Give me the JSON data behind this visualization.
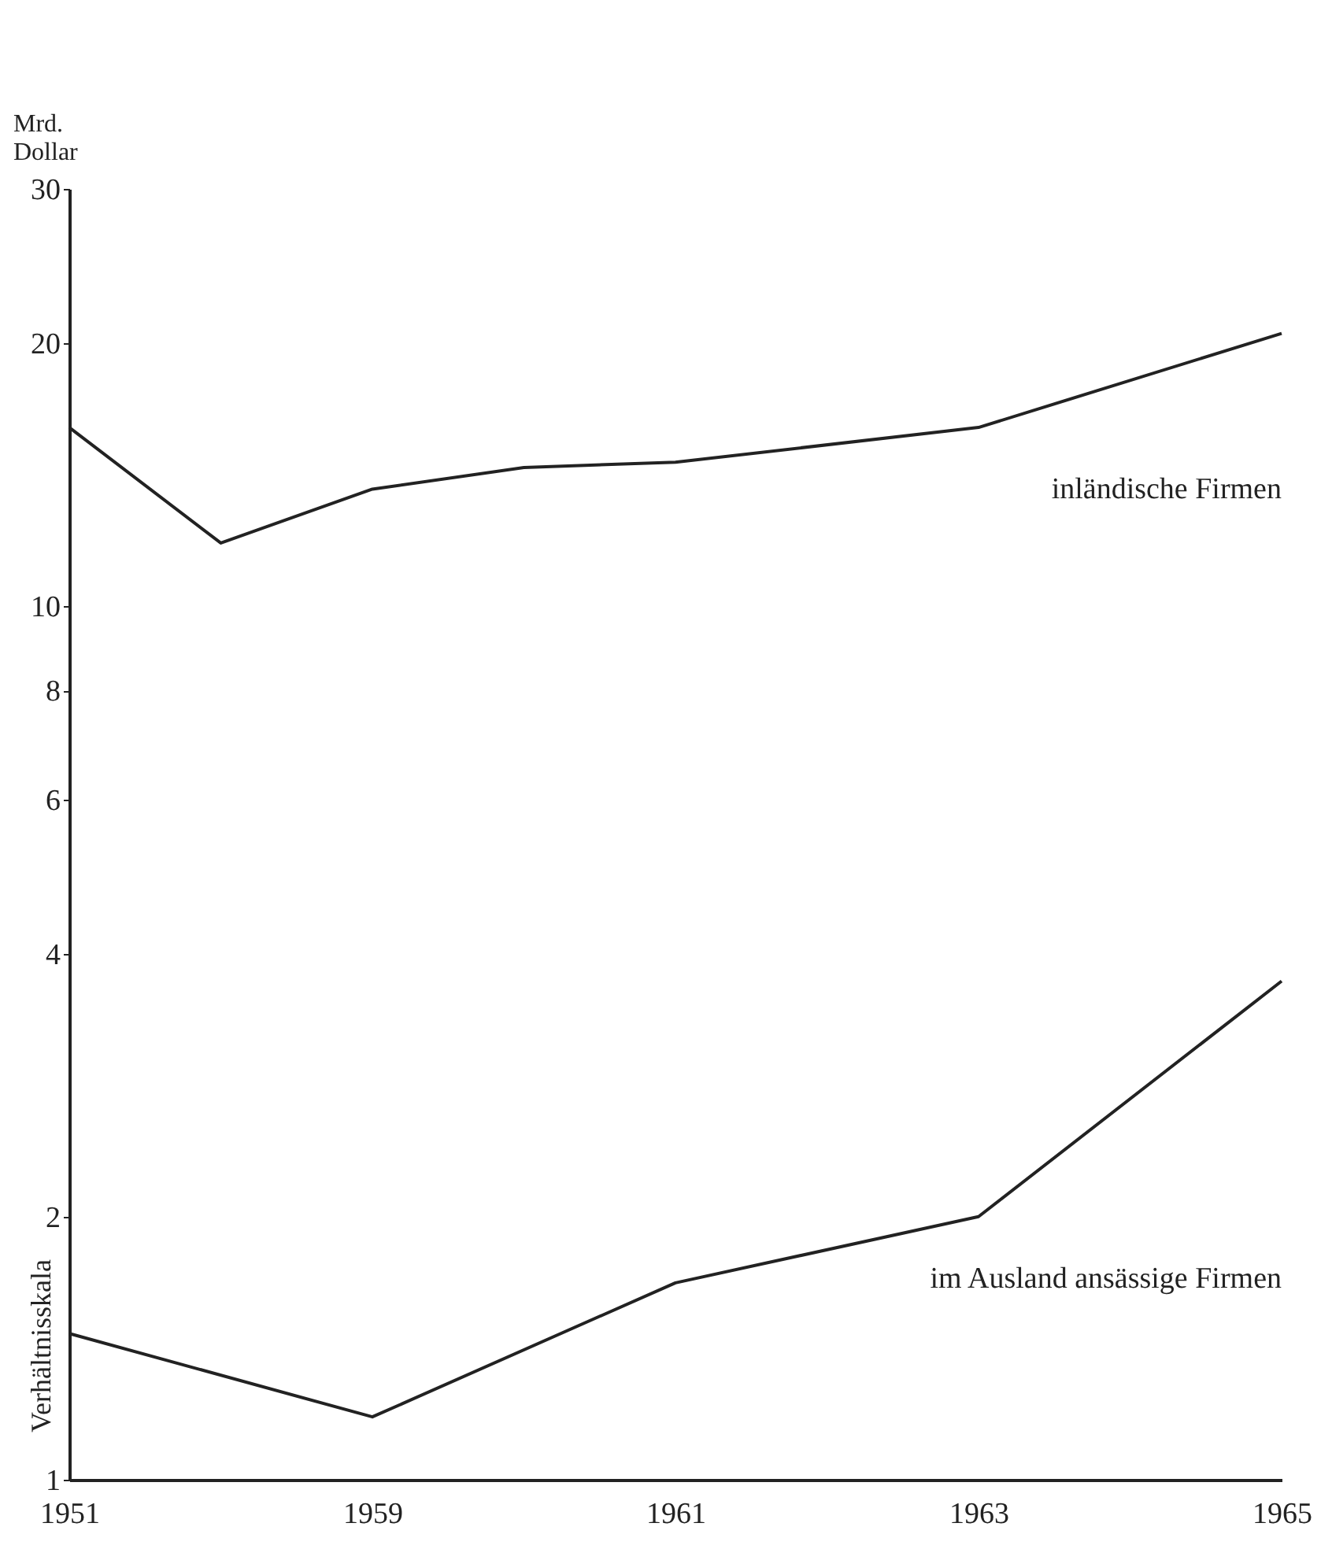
{
  "chart_data": {
    "type": "line",
    "ylabel": "Mrd.\nDollar",
    "categories": [
      "1951",
      null,
      "1959",
      null,
      "1961",
      null,
      "1963",
      null,
      "1965"
    ],
    "series": [
      {
        "name": "inländische Firmen",
        "color": "#222222",
        "values": [
          16.0,
          11.8,
          13.6,
          14.4,
          14.6,
          null,
          16.0,
          null,
          20.5
        ]
      },
      {
        "name": "im Ausland ansässige Firmen",
        "color": "#222222",
        "values": [
          1.47,
          null,
          1.18,
          null,
          1.68,
          null,
          2.0,
          null,
          3.72
        ]
      }
    ],
    "log": "y",
    "ylim": [
      1,
      30
    ],
    "yticks": [
      1,
      2,
      4,
      6,
      8,
      10,
      20,
      30
    ],
    "annotations": [
      "Verhältnisskala"
    ],
    "line_style": "solid"
  }
}
